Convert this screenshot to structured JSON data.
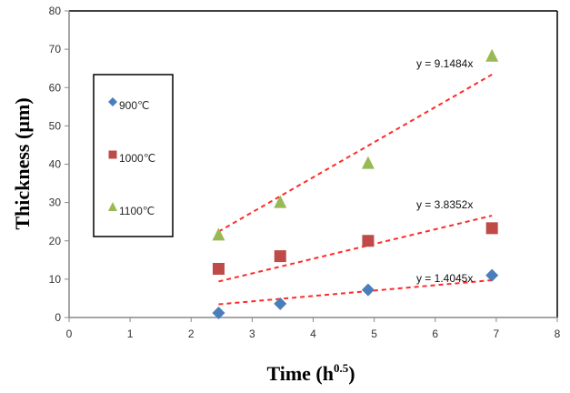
{
  "chart_data": {
    "type": "scatter",
    "title": "",
    "xlabel": "Time (h",
    "xlabel_sup": "0.5",
    "xlabel_close": ")",
    "ylabel": "Thickness (µm)",
    "xlim": [
      0,
      8
    ],
    "ylim": [
      0,
      80
    ],
    "xticks": [
      "0",
      "1",
      "2",
      "3",
      "4",
      "5",
      "6",
      "7",
      "8"
    ],
    "yticks": [
      "0",
      "10",
      "20",
      "30",
      "40",
      "50",
      "60",
      "70",
      "80"
    ],
    "grid": false,
    "legend_placement": "left",
    "series": [
      {
        "name": "900℃",
        "marker": "diamond",
        "color": "#4a7ebb",
        "x": [
          2.45,
          3.46,
          4.9,
          6.93
        ],
        "y": [
          1.2,
          3.6,
          7.2,
          11.0
        ],
        "trendline": {
          "slope": 1.4045,
          "label": "y = 1.4045x",
          "x_range": [
            2.45,
            6.93
          ]
        }
      },
      {
        "name": "1000℃",
        "marker": "square",
        "color": "#be4b48",
        "x": [
          2.45,
          3.46,
          4.9,
          6.93
        ],
        "y": [
          12.7,
          16.0,
          20.0,
          23.3
        ],
        "trendline": {
          "slope": 3.8352,
          "label": "y = 3.8352x",
          "x_range": [
            2.45,
            6.93
          ]
        }
      },
      {
        "name": "1100℃",
        "marker": "triangle",
        "color": "#98b954",
        "x": [
          2.45,
          3.46,
          4.9,
          6.93
        ],
        "y": [
          21.5,
          30.0,
          40.2,
          68.2
        ],
        "trendline": {
          "slope": 9.1484,
          "label": "y = 9.1484x",
          "x_range": [
            2.45,
            6.93
          ]
        }
      }
    ],
    "trendline_color": "#ff2a2a"
  }
}
